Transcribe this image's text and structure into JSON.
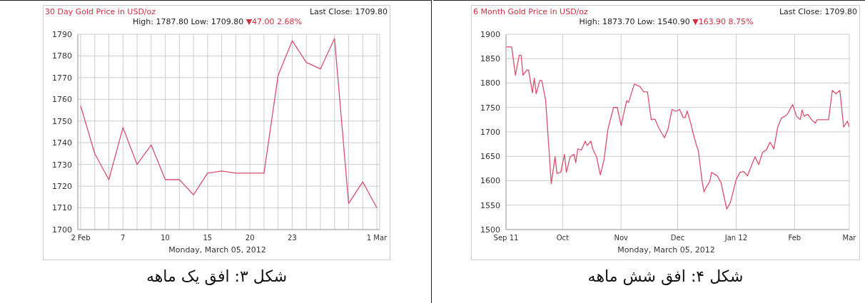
{
  "chart_data": [
    {
      "type": "line",
      "title": "30 Day Gold Price in USD/oz",
      "subtitle": "High: 1787.80 Low: 1709.80",
      "xlabel": "Monday, March 05, 2012",
      "annotations": [
        "Last Close: 1709.80",
        "▼47.00 2.68%",
        "شکل ۳: افق یک ماهه"
      ],
      "categories": [
        "2 Feb",
        null,
        null,
        "7",
        null,
        null,
        "10",
        null,
        null,
        "15",
        null,
        null,
        "20",
        null,
        null,
        "23",
        null,
        null,
        null,
        null,
        null,
        "1 Mar"
      ],
      "values": [
        1757,
        1735,
        1723,
        1747,
        1730,
        1739,
        1723,
        1723,
        1716,
        1726,
        1727,
        1726,
        1726,
        1726,
        1771,
        1787,
        1777,
        1774,
        1788,
        1712,
        1722,
        1710
      ],
      "color": "#d9506e",
      "ylim": [
        1700,
        1790
      ],
      "yticks": [
        1700,
        1710,
        1720,
        1730,
        1740,
        1750,
        1760,
        1770,
        1780,
        1790
      ],
      "grid": true
    },
    {
      "type": "line",
      "title": "6 Month Gold Price in USD/oz",
      "subtitle": "High: 1873.70 Low: 1540.90",
      "xlabel": "Monday, March 05, 2012",
      "annotations": [
        "Last Close: 1709.80",
        "▼163.90 8.75%",
        "شکل ۴: افق شش ماهه"
      ],
      "x": [
        "2011-09-01",
        "2011-09-04",
        "2011-09-06",
        "2011-09-08",
        "2011-09-09",
        "2011-09-10",
        "2011-09-12",
        "2011-09-13",
        "2011-09-15",
        "2011-09-16",
        "2011-09-17",
        "2011-09-19",
        "2011-09-20",
        "2011-09-22",
        "2011-09-25",
        "2011-09-27",
        "2011-09-28",
        "2011-09-30",
        "2011-10-02",
        "2011-10-03",
        "2011-10-05",
        "2011-10-07",
        "2011-10-08",
        "2011-10-09",
        "2011-10-11",
        "2011-10-13",
        "2011-10-14",
        "2011-10-16",
        "2011-10-17",
        "2011-10-19",
        "2011-10-21",
        "2011-10-23",
        "2011-10-25",
        "2011-10-28",
        "2011-10-30",
        "2011-11-01",
        "2011-11-04",
        "2011-11-05",
        "2011-11-08",
        "2011-11-11",
        "2011-11-13",
        "2011-11-15",
        "2011-11-17",
        "2011-11-19",
        "2011-11-21",
        "2011-11-24",
        "2011-11-26",
        "2011-11-28",
        "2011-11-30",
        "2011-12-02",
        "2011-12-04",
        "2011-12-05",
        "2011-12-06",
        "2011-12-08",
        "2011-12-09",
        "2011-12-11",
        "2011-12-12",
        "2011-12-14",
        "2011-12-15",
        "2011-12-16",
        "2011-12-18",
        "2011-12-19",
        "2011-12-22",
        "2011-12-24",
        "2011-12-27",
        "2011-12-29",
        "2012-01-01",
        "2012-01-03",
        "2012-01-05",
        "2012-01-07",
        "2012-01-09",
        "2012-01-11",
        "2012-01-13",
        "2012-01-15",
        "2012-01-17",
        "2012-01-19",
        "2012-01-21",
        "2012-01-23",
        "2012-01-25",
        "2012-01-28",
        "2012-01-31",
        "2012-02-02",
        "2012-02-04",
        "2012-02-05",
        "2012-02-06",
        "2012-02-08",
        "2012-02-10",
        "2012-02-12",
        "2012-02-13",
        "2012-02-19",
        "2012-02-21",
        "2012-02-23",
        "2012-02-25",
        "2012-02-27",
        "2012-02-29",
        "2012-03-01"
      ],
      "values": [
        1874,
        1874,
        1816,
        1857,
        1857,
        1816,
        1827,
        1826,
        1780,
        1810,
        1778,
        1806,
        1805,
        1765,
        1594,
        1649,
        1615,
        1617,
        1654,
        1617,
        1649,
        1654,
        1637,
        1665,
        1663,
        1681,
        1672,
        1681,
        1665,
        1649,
        1612,
        1644,
        1705,
        1750,
        1750,
        1713,
        1764,
        1760,
        1798,
        1793,
        1782,
        1782,
        1725,
        1726,
        1708,
        1688,
        1707,
        1746,
        1742,
        1746,
        1729,
        1729,
        1743,
        1717,
        1700,
        1672,
        1661,
        1598,
        1577,
        1586,
        1598,
        1617,
        1610,
        1596,
        1542,
        1556,
        1602,
        1617,
        1619,
        1610,
        1630,
        1649,
        1633,
        1658,
        1663,
        1679,
        1665,
        1709,
        1728,
        1735,
        1756,
        1732,
        1725,
        1745,
        1732,
        1736,
        1725,
        1718,
        1725,
        1725,
        1785,
        1778,
        1785,
        1710,
        1722,
        1710
      ],
      "color": "#d9506e",
      "xlim": [
        "2011-09-01",
        "2012-03-01"
      ],
      "xticks": [
        {
          "value": "2011-09-01",
          "label": "Sep 11"
        },
        {
          "value": "2011-10-01",
          "label": "Oct"
        },
        {
          "value": "2011-11-01",
          "label": "Nov"
        },
        {
          "value": "2011-12-01",
          "label": "Dec"
        },
        {
          "value": "2012-01-01",
          "label": "Jan 12"
        },
        {
          "value": "2012-02-01",
          "label": "Feb"
        },
        {
          "value": "2012-03-01",
          "label": "Mar"
        }
      ],
      "ylim": [
        1500,
        1900
      ],
      "yticks": [
        1500,
        1550,
        1600,
        1650,
        1700,
        1750,
        1800,
        1850,
        1900
      ],
      "grid": true
    }
  ]
}
